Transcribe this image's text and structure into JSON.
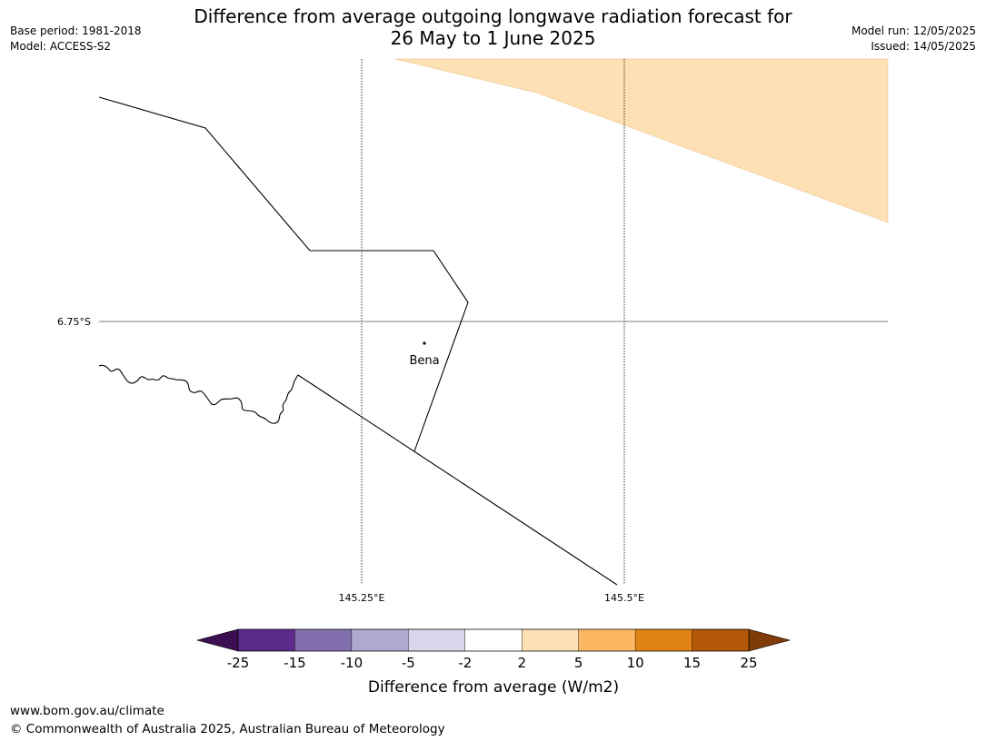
{
  "header": {
    "title_line1": "Difference from average outgoing longwave radiation forecast for",
    "title_line2": "26 May to 1 June 2025",
    "base_period": "Base period: 1981-2018",
    "model": "Model: ACCESS-S2",
    "model_run": "Model run: 12/05/2025",
    "issued": "Issued: 14/05/2025"
  },
  "map": {
    "place_label": "Bena",
    "lat_label": "6.75°S",
    "lon_labels": [
      "145.25°E",
      "145.5°E"
    ],
    "fill_color": "#fde0b3",
    "fill_category": "2 to 5 W/m2"
  },
  "colorbar": {
    "label": "Difference from average (W/m2)",
    "ticks": [
      "-25",
      "-15",
      "-10",
      "-5",
      "-2",
      "2",
      "5",
      "10",
      "15",
      "25"
    ],
    "colors": [
      "#3b0f52",
      "#5b2a8a",
      "#8270ae",
      "#b1a8d2",
      "#d9d7eb",
      "#ffffff",
      "#fde0b3",
      "#fbb761",
      "#e08214",
      "#b35806",
      "#7f3b08"
    ]
  },
  "footer": {
    "url": "www.bom.gov.au/climate",
    "copyright": "© Commonwealth of Australia 2025, Australian Bureau of Meteorology"
  }
}
